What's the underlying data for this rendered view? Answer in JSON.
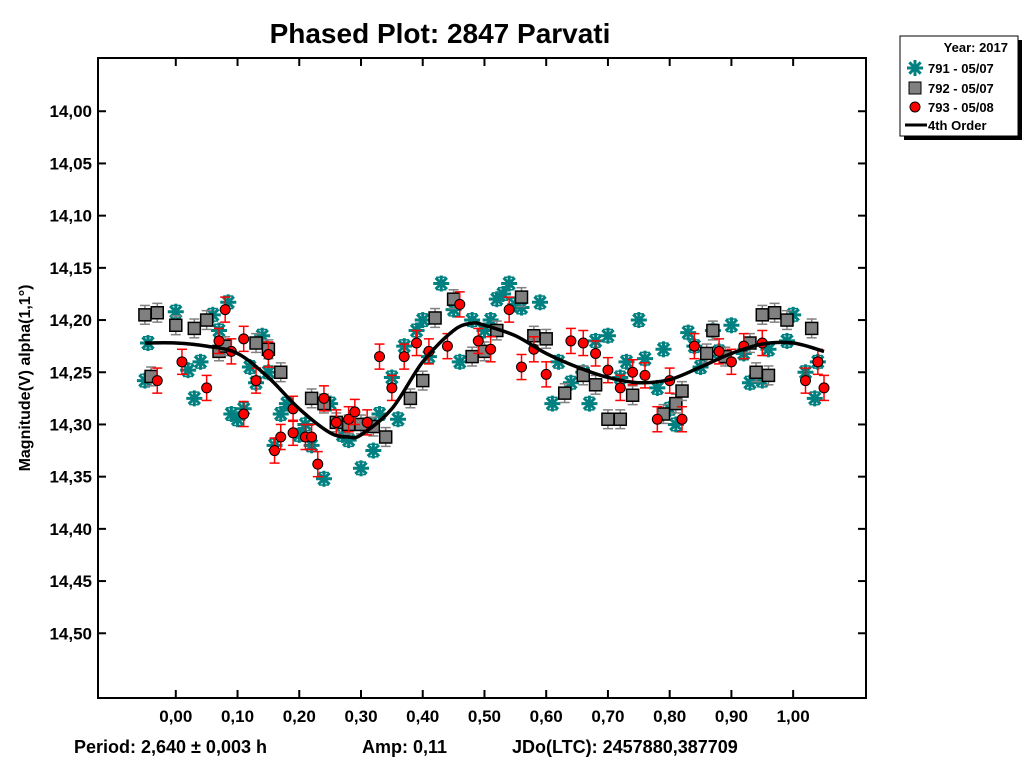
{
  "chart_data": {
    "type": "scatter",
    "title": "Phased Plot: 2847 Parvati",
    "xlabel": "",
    "ylabel": "Magnitude(V) alpha(1,1°)",
    "xlim": [
      -0.126,
      1.118
    ],
    "ylim": [
      13.949,
      14.562
    ],
    "y_inverted": true,
    "x_ticks": [
      0.0,
      0.1,
      0.2,
      0.3,
      0.4,
      0.5,
      0.6,
      0.7,
      0.8,
      0.9,
      1.0
    ],
    "x_tick_labels": [
      "0,00",
      "0,10",
      "0,20",
      "0,30",
      "0,40",
      "0,50",
      "0,60",
      "0,70",
      "0,80",
      "0,90",
      "1,00"
    ],
    "y_ticks": [
      14.0,
      14.05,
      14.1,
      14.15,
      14.2,
      14.25,
      14.3,
      14.35,
      14.4,
      14.45,
      14.5
    ],
    "y_tick_labels": [
      "14,00",
      "14,05",
      "14,10",
      "14,15",
      "14,20",
      "14,25",
      "14,30",
      "14,35",
      "14,40",
      "14,45",
      "14,50"
    ],
    "grid": false,
    "legend": {
      "placement": "top-right, outside",
      "header": "Year: 2017",
      "entries": [
        "791 - 05/07",
        "792 - 05/07",
        "793 - 05/08",
        "4th Order"
      ]
    },
    "series": [
      {
        "name": "791 - 05/07",
        "marker": "asterisk",
        "color": "#008080",
        "err": 0.006,
        "points": [
          [
            -0.05,
            14.258
          ],
          [
            -0.045,
            14.222
          ],
          [
            0.0,
            14.192
          ],
          [
            0.02,
            14.248
          ],
          [
            0.03,
            14.275
          ],
          [
            0.04,
            14.24
          ],
          [
            0.06,
            14.195
          ],
          [
            0.07,
            14.21
          ],
          [
            0.085,
            14.183
          ],
          [
            0.09,
            14.29
          ],
          [
            0.1,
            14.295
          ],
          [
            0.11,
            14.285
          ],
          [
            0.12,
            14.245
          ],
          [
            0.13,
            14.26
          ],
          [
            0.14,
            14.215
          ],
          [
            0.15,
            14.25
          ],
          [
            0.16,
            14.32
          ],
          [
            0.17,
            14.29
          ],
          [
            0.18,
            14.28
          ],
          [
            0.2,
            14.31
          ],
          [
            0.21,
            14.3
          ],
          [
            0.22,
            14.32
          ],
          [
            0.24,
            14.352
          ],
          [
            0.25,
            14.28
          ],
          [
            0.27,
            14.31
          ],
          [
            0.28,
            14.315
          ],
          [
            0.3,
            14.342
          ],
          [
            0.31,
            14.3
          ],
          [
            0.32,
            14.325
          ],
          [
            0.33,
            14.29
          ],
          [
            0.35,
            14.255
          ],
          [
            0.36,
            14.295
          ],
          [
            0.37,
            14.225
          ],
          [
            0.39,
            14.21
          ],
          [
            0.4,
            14.2
          ],
          [
            0.41,
            14.235
          ],
          [
            0.43,
            14.165
          ],
          [
            0.45,
            14.19
          ],
          [
            0.46,
            14.24
          ],
          [
            0.48,
            14.2
          ],
          [
            0.5,
            14.21
          ],
          [
            0.51,
            14.2
          ],
          [
            0.52,
            14.18
          ],
          [
            0.53,
            14.175
          ],
          [
            0.54,
            14.165
          ],
          [
            0.55,
            14.185
          ],
          [
            0.56,
            14.188
          ],
          [
            0.59,
            14.183
          ],
          [
            0.61,
            14.28
          ],
          [
            0.62,
            14.24
          ],
          [
            0.64,
            14.26
          ],
          [
            0.66,
            14.25
          ],
          [
            0.67,
            14.28
          ],
          [
            0.68,
            14.22
          ],
          [
            0.7,
            14.215
          ],
          [
            0.72,
            14.255
          ],
          [
            0.73,
            14.24
          ],
          [
            0.75,
            14.2
          ],
          [
            0.76,
            14.237
          ],
          [
            0.78,
            14.265
          ],
          [
            0.79,
            14.228
          ],
          [
            0.8,
            14.285
          ],
          [
            0.81,
            14.3
          ],
          [
            0.83,
            14.212
          ],
          [
            0.84,
            14.225
          ],
          [
            0.85,
            14.245
          ],
          [
            0.87,
            14.21
          ],
          [
            0.88,
            14.23
          ],
          [
            0.9,
            14.205
          ],
          [
            0.92,
            14.232
          ],
          [
            0.93,
            14.26
          ],
          [
            0.95,
            14.258
          ],
          [
            0.96,
            14.228
          ],
          [
            0.99,
            14.22
          ],
          [
            1.0,
            14.195
          ],
          [
            1.02,
            14.25
          ],
          [
            1.035,
            14.275
          ],
          [
            1.04,
            14.24
          ]
        ]
      },
      {
        "name": "792 - 05/07",
        "marker": "square",
        "color": "#808080",
        "err": 0.009,
        "points": [
          [
            -0.05,
            14.195
          ],
          [
            -0.03,
            14.193
          ],
          [
            -0.04,
            14.254
          ],
          [
            0.0,
            14.205
          ],
          [
            0.03,
            14.208
          ],
          [
            0.05,
            14.2
          ],
          [
            0.07,
            14.23
          ],
          [
            0.08,
            14.225
          ],
          [
            0.13,
            14.222
          ],
          [
            0.15,
            14.228
          ],
          [
            0.17,
            14.25
          ],
          [
            0.22,
            14.275
          ],
          [
            0.24,
            14.28
          ],
          [
            0.26,
            14.298
          ],
          [
            0.28,
            14.3
          ],
          [
            0.3,
            14.3
          ],
          [
            0.32,
            14.302
          ],
          [
            0.34,
            14.312
          ],
          [
            0.38,
            14.275
          ],
          [
            0.4,
            14.258
          ],
          [
            0.42,
            14.198
          ],
          [
            0.45,
            14.18
          ],
          [
            0.48,
            14.235
          ],
          [
            0.5,
            14.23
          ],
          [
            0.52,
            14.21
          ],
          [
            0.56,
            14.178
          ],
          [
            0.58,
            14.215
          ],
          [
            0.6,
            14.218
          ],
          [
            0.63,
            14.27
          ],
          [
            0.66,
            14.253
          ],
          [
            0.68,
            14.262
          ],
          [
            0.7,
            14.295
          ],
          [
            0.72,
            14.295
          ],
          [
            0.74,
            14.272
          ],
          [
            0.79,
            14.29
          ],
          [
            0.81,
            14.28
          ],
          [
            0.82,
            14.268
          ],
          [
            0.86,
            14.232
          ],
          [
            0.87,
            14.21
          ],
          [
            0.89,
            14.235
          ],
          [
            0.93,
            14.222
          ],
          [
            0.94,
            14.25
          ],
          [
            0.95,
            14.195
          ],
          [
            0.96,
            14.253
          ],
          [
            0.97,
            14.193
          ],
          [
            0.99,
            14.2
          ],
          [
            1.03,
            14.208
          ]
        ]
      },
      {
        "name": "793 - 05/08",
        "marker": "circle",
        "color": "#ff0000",
        "err": 0.012,
        "points": [
          [
            -0.03,
            14.258
          ],
          [
            0.01,
            14.24
          ],
          [
            0.05,
            14.265
          ],
          [
            0.07,
            14.22
          ],
          [
            0.08,
            14.19
          ],
          [
            0.09,
            14.23
          ],
          [
            0.11,
            14.218
          ],
          [
            0.11,
            14.29
          ],
          [
            0.13,
            14.258
          ],
          [
            0.15,
            14.233
          ],
          [
            0.16,
            14.325
          ],
          [
            0.17,
            14.312
          ],
          [
            0.19,
            14.285
          ],
          [
            0.19,
            14.308
          ],
          [
            0.21,
            14.312
          ],
          [
            0.22,
            14.312
          ],
          [
            0.23,
            14.338
          ],
          [
            0.24,
            14.275
          ],
          [
            0.26,
            14.298
          ],
          [
            0.28,
            14.295
          ],
          [
            0.29,
            14.288
          ],
          [
            0.31,
            14.298
          ],
          [
            0.33,
            14.235
          ],
          [
            0.35,
            14.265
          ],
          [
            0.37,
            14.235
          ],
          [
            0.39,
            14.222
          ],
          [
            0.41,
            14.23
          ],
          [
            0.44,
            14.225
          ],
          [
            0.46,
            14.185
          ],
          [
            0.49,
            14.22
          ],
          [
            0.51,
            14.228
          ],
          [
            0.54,
            14.19
          ],
          [
            0.56,
            14.245
          ],
          [
            0.58,
            14.228
          ],
          [
            0.6,
            14.252
          ],
          [
            0.64,
            14.22
          ],
          [
            0.66,
            14.222
          ],
          [
            0.68,
            14.232
          ],
          [
            0.7,
            14.248
          ],
          [
            0.72,
            14.265
          ],
          [
            0.74,
            14.25
          ],
          [
            0.76,
            14.253
          ],
          [
            0.78,
            14.295
          ],
          [
            0.8,
            14.258
          ],
          [
            0.82,
            14.295
          ],
          [
            0.84,
            14.225
          ],
          [
            0.88,
            14.23
          ],
          [
            0.9,
            14.24
          ],
          [
            0.92,
            14.225
          ],
          [
            0.95,
            14.222
          ],
          [
            1.02,
            14.258
          ],
          [
            1.04,
            14.24
          ],
          [
            1.05,
            14.265
          ]
        ]
      }
    ],
    "fit": {
      "name": "4th Order",
      "color": "#000000",
      "points": [
        [
          -0.05,
          14.222
        ],
        [
          0.0,
          14.222
        ],
        [
          0.05,
          14.225
        ],
        [
          0.1,
          14.232
        ],
        [
          0.15,
          14.255
        ],
        [
          0.2,
          14.285
        ],
        [
          0.25,
          14.308
        ],
        [
          0.28,
          14.312
        ],
        [
          0.3,
          14.31
        ],
        [
          0.35,
          14.285
        ],
        [
          0.4,
          14.24
        ],
        [
          0.45,
          14.21
        ],
        [
          0.48,
          14.203
        ],
        [
          0.5,
          14.205
        ],
        [
          0.55,
          14.215
        ],
        [
          0.6,
          14.232
        ],
        [
          0.65,
          14.245
        ],
        [
          0.7,
          14.255
        ],
        [
          0.75,
          14.26
        ],
        [
          0.8,
          14.257
        ],
        [
          0.85,
          14.245
        ],
        [
          0.9,
          14.232
        ],
        [
          0.95,
          14.223
        ],
        [
          1.0,
          14.222
        ],
        [
          1.05,
          14.23
        ]
      ]
    },
    "footer": {
      "period": "Period: 2,640 ± 0,003 h",
      "amp": "Amp: 0,11",
      "jdo": "JDo(LTC): 2457880,387709"
    }
  }
}
